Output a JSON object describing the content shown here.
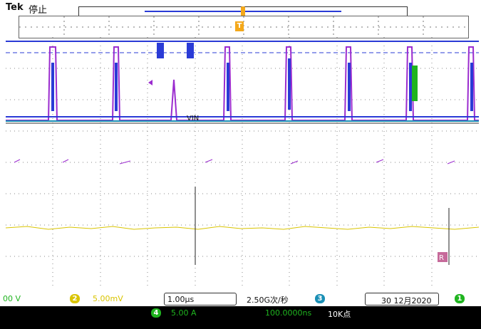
{
  "title": {
    "brand": "Tek",
    "state": "停止"
  },
  "colors": {
    "ch1": "#1fb41f",
    "ch2": "#d9c400",
    "ch3": "#1a8fb5",
    "ch4": "#2c3fd6",
    "trace_purple": "#9b2ccf",
    "trace_blue": "#2a3bd6",
    "trigger": "#f4a81a",
    "ref": "#c66a9a"
  },
  "icons": {
    "trigger": "trigger-marker-icon",
    "ch1_ground": "ch1-ground-marker-icon",
    "ref": "reference-marker-icon"
  },
  "overlay": {
    "vin_label": "VIN"
  },
  "channels": {
    "ch1": {
      "scale": "00 V"
    },
    "ch2": {
      "badge": "2",
      "scale": "5.00mV"
    },
    "ch3": {
      "badge": "3"
    },
    "ch4": {
      "badge": "4",
      "scale": "5.00 A"
    },
    "ch1_badge": "1"
  },
  "horizontal": {
    "time_div": "1.00µs",
    "sample_rate": "2.50G次/秒",
    "delay": "100.0000ns",
    "record": "10K点"
  },
  "date": "30 12月2020"
}
